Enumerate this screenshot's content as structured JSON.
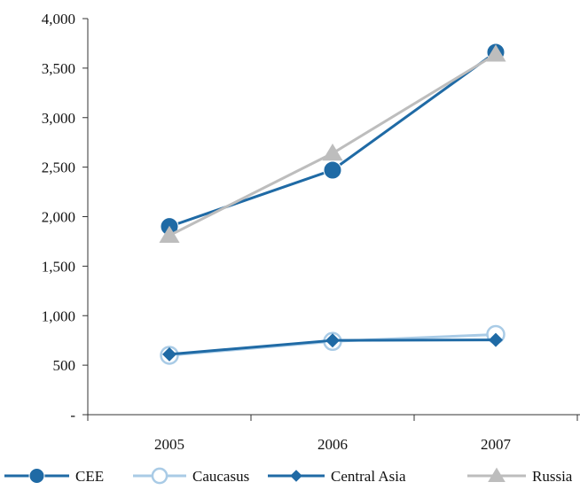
{
  "chart_data": {
    "type": "line",
    "title": "",
    "xlabel": "",
    "ylabel": "",
    "x": [
      "2005",
      "2006",
      "2007"
    ],
    "ylim": [
      0,
      4000
    ],
    "yticks": [
      0,
      500,
      1000,
      1500,
      2000,
      2500,
      3000,
      3500,
      4000
    ],
    "ytick_labels": [
      "-",
      "500",
      "1,000",
      "1,500",
      "2,000",
      "2,500",
      "3,000",
      "3,500",
      "4,000"
    ],
    "grid": false,
    "legend_position": "bottom",
    "series": [
      {
        "name": "CEE",
        "values": [
          1900,
          2470,
          3660
        ],
        "color": "#1f6aa5",
        "marker": "circle-filled"
      },
      {
        "name": "Caucasus",
        "values": [
          600,
          740,
          810
        ],
        "color": "#a9cbe6",
        "marker": "circle-open"
      },
      {
        "name": "Central Asia",
        "values": [
          610,
          750,
          755
        ],
        "color": "#1f6aa5",
        "marker": "diamond-filled"
      },
      {
        "name": "Russia",
        "values": [
          1810,
          2640,
          3640
        ],
        "color": "#bdbdbd",
        "marker": "triangle-filled"
      }
    ]
  }
}
